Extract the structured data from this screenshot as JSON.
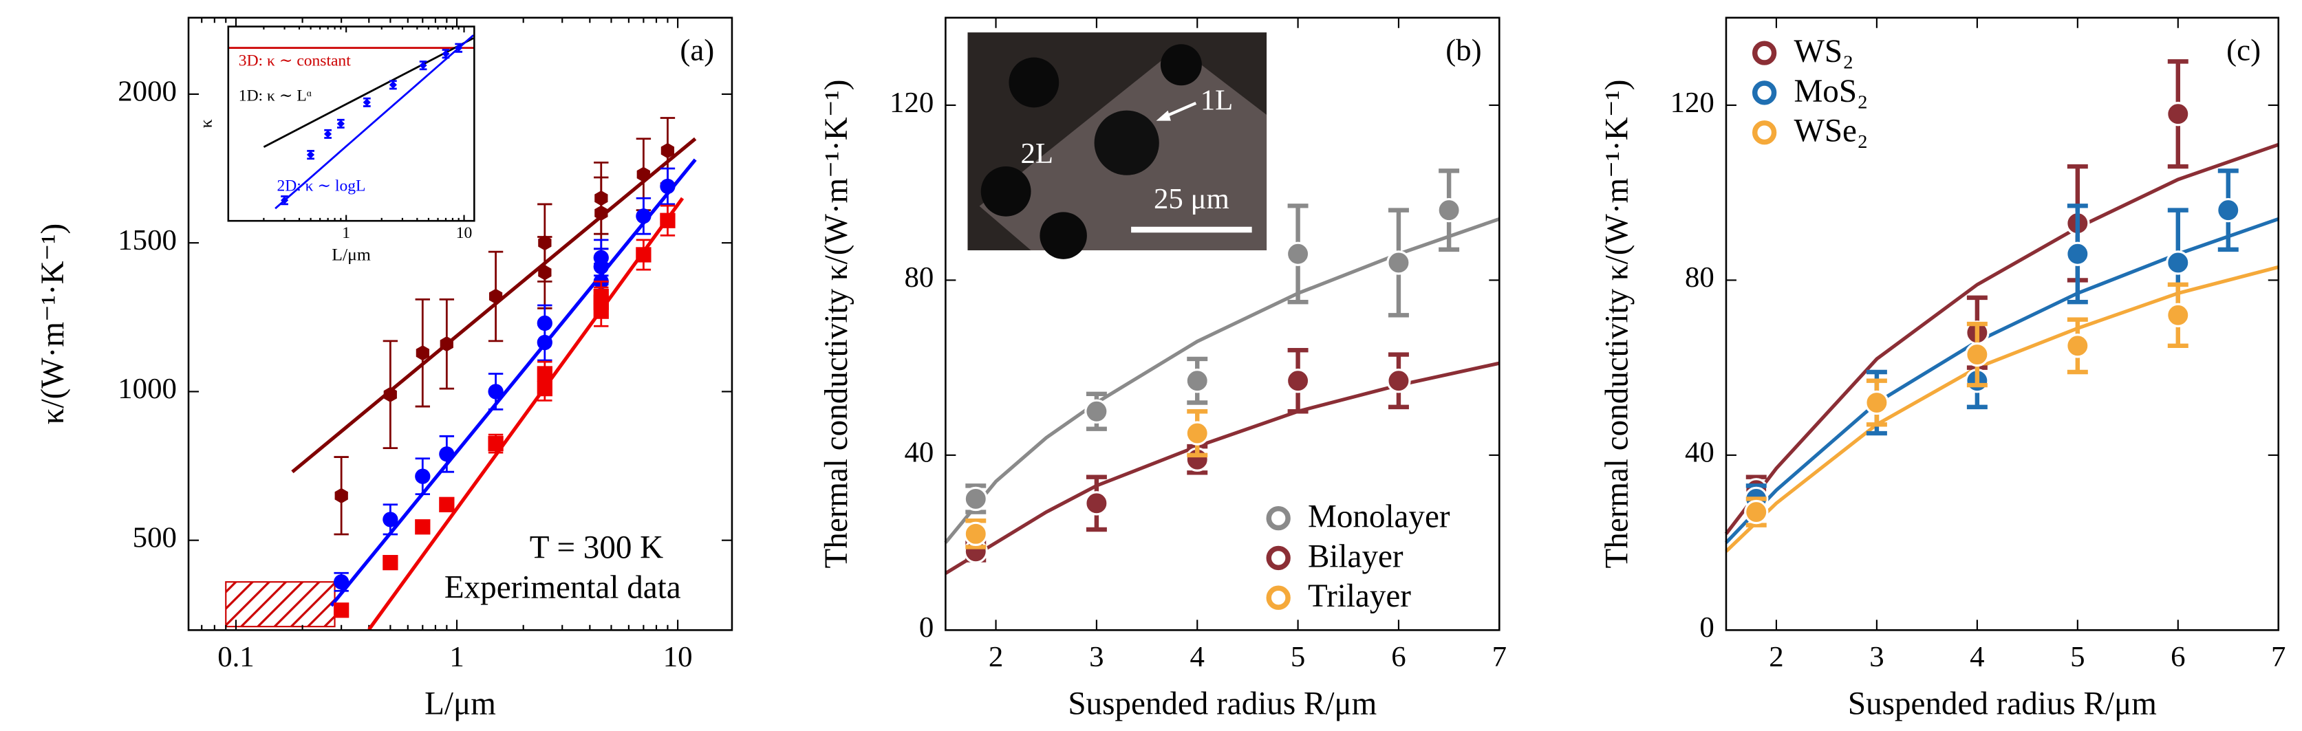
{
  "chart_data": [
    {
      "type": "scatter",
      "label": "(a)",
      "xlabel": "L/μm",
      "ylabel": "κ/(W·m⁻¹·K⁻¹)",
      "xscale": "log",
      "xlim": [
        0.061,
        17.6
      ],
      "ylim": [
        198,
        2257
      ],
      "xticks": [
        0.1,
        1,
        10
      ],
      "yticks": [
        500,
        1000,
        1500,
        2000
      ],
      "series": [
        {
          "color": "#800000",
          "marker": "hexagon",
          "x": [
            0.3,
            0.5,
            0.7,
            0.9,
            1.5,
            2.5,
            2.5,
            4.5,
            4.5,
            7,
            9
          ],
          "values": [
            650,
            990,
            1130,
            1160,
            1320,
            1400,
            1500,
            1600,
            1650,
            1730,
            1810
          ],
          "errors": [
            130,
            180,
            180,
            150,
            150,
            120,
            130,
            120,
            120,
            120,
            110
          ]
        },
        {
          "color": "#0000ff",
          "marker": "circle",
          "x": [
            0.3,
            0.5,
            0.7,
            0.9,
            1.5,
            2.5,
            2.5,
            4.5,
            4.5,
            4.5,
            7,
            9
          ],
          "values": [
            360,
            570,
            715,
            790,
            1000,
            1165,
            1230,
            1370,
            1420,
            1450,
            1590,
            1690
          ],
          "errors": [
            30,
            50,
            60,
            60,
            60,
            60,
            60,
            60,
            60,
            60,
            60,
            60
          ]
        },
        {
          "color": "#ee0000",
          "marker": "square",
          "x": [
            0.3,
            0.5,
            0.7,
            0.9,
            1.5,
            2.5,
            2.5,
            4.5,
            4.5,
            4.5,
            7,
            9
          ],
          "values": [
            265,
            425,
            545,
            620,
            825,
            1010,
            1060,
            1270,
            1300,
            1320,
            1460,
            1575
          ],
          "errors": [
            10,
            10,
            20,
            20,
            30,
            40,
            40,
            50,
            50,
            50,
            50,
            50
          ]
        }
      ],
      "fits": [
        {
          "color": "#800000",
          "x": [
            0.18,
            12
          ],
          "values": [
            730,
            1850
          ]
        },
        {
          "color": "#0000ff",
          "x": [
            0.27,
            12
          ],
          "values": [
            280,
            1780
          ]
        },
        {
          "color": "#ee0000",
          "x": [
            0.4,
            10.5
          ],
          "values": [
            200,
            1650
          ]
        }
      ],
      "hatch_region": {
        "color": "#cc0000",
        "x": [
          0.09,
          0.28
        ],
        "y": [
          210,
          360
        ]
      },
      "annotations": [
        {
          "text": "T = 300 K",
          "color": "#000000"
        },
        {
          "text": "Experimental data",
          "color": "#000000"
        }
      ]
    },
    {
      "type": "scatter",
      "xlabel": "L/μm",
      "ylabel": "κ",
      "xscale": "log",
      "xlim": [
        0.1,
        12.2
      ],
      "ylim": [
        0,
        100
      ],
      "xticks": [
        1,
        10
      ],
      "series": [
        {
          "color": "#0000ff",
          "marker": "diamond",
          "x": [
            0.3,
            0.5,
            0.7,
            0.9,
            1.5,
            2.5,
            4.5,
            7,
            9
          ],
          "values": [
            10.6,
            34,
            44.7,
            50,
            61,
            70,
            80,
            86,
            89
          ],
          "errors": [
            2,
            2,
            2,
            2,
            2,
            2,
            2,
            2,
            2
          ]
        }
      ],
      "fits": [
        {
          "color": "#cc0000",
          "x": [
            0.1,
            12.2
          ],
          "values": [
            89,
            89
          ]
        },
        {
          "color": "#000000",
          "x": [
            0.2,
            12
          ],
          "values": [
            38,
            94
          ]
        },
        {
          "color": "#0000ff",
          "x": [
            0.25,
            0.5,
            1,
            2,
            4,
            8,
            12
          ],
          "values": [
            6.4,
            22.3,
            38.3,
            54.3,
            70.2,
            86.2,
            95.5
          ]
        }
      ],
      "annotations": [
        {
          "text": "3D: κ ∼ constant",
          "color": "#cc0000"
        },
        {
          "text": "1D: κ ∼ Lᵅ",
          "color": "#000000"
        },
        {
          "text": "2D: κ ∼ logL",
          "color": "#0000ff"
        }
      ]
    },
    {
      "type": "scatter",
      "label": "(b)",
      "xlabel": "Suspended radius R/μm",
      "ylabel": "Thermal conductivity κ/(W·m⁻¹·K⁻¹)",
      "xlim": [
        1.5,
        7
      ],
      "ylim": [
        0,
        140
      ],
      "xticks": [
        2,
        3,
        4,
        5,
        6,
        7
      ],
      "yticks": [
        0,
        40,
        80,
        120
      ],
      "legend": "lower right",
      "series": [
        {
          "name": "Monolayer",
          "color": "#8a8a8a",
          "marker": "circle",
          "x": [
            1.8,
            3,
            4,
            5,
            6,
            6.5
          ],
          "values": [
            30,
            50,
            57,
            86,
            84,
            96
          ],
          "errors": [
            3,
            4,
            5,
            11,
            12,
            9
          ]
        },
        {
          "name": "Bilayer",
          "color": "#8b2e35",
          "marker": "circle",
          "x": [
            1.8,
            3,
            4,
            5,
            6
          ],
          "values": [
            18,
            29,
            39,
            57,
            57
          ],
          "errors": [
            2,
            6,
            3,
            7,
            6
          ]
        },
        {
          "name": "Trilayer",
          "color": "#f5a93a",
          "marker": "circle",
          "x": [
            1.8,
            4
          ],
          "values": [
            22,
            45
          ],
          "errors": [
            3,
            5
          ]
        }
      ],
      "fits": [
        {
          "color": "#8a8a8a",
          "x": [
            1.5,
            2,
            2.5,
            3,
            4,
            5,
            6,
            7
          ],
          "values": [
            20,
            34,
            44,
            52,
            66,
            77,
            86,
            94
          ]
        },
        {
          "color": "#8b2e35",
          "x": [
            1.5,
            2,
            2.5,
            3,
            4,
            5,
            6,
            7
          ],
          "values": [
            13,
            20,
            27,
            33,
            42,
            50,
            56,
            61
          ]
        }
      ],
      "inset_labels": [
        "1L",
        "2L",
        "25 μm"
      ]
    },
    {
      "type": "scatter",
      "label": "(c)",
      "xlabel": "Suspended radius R/μm",
      "ylabel": "Thermal conductivity κ/(W·m⁻¹·K⁻¹)",
      "xlim": [
        1.5,
        7
      ],
      "ylim": [
        0,
        140
      ],
      "xticks": [
        2,
        3,
        4,
        5,
        6,
        7
      ],
      "yticks": [
        0,
        40,
        80,
        120
      ],
      "legend": "upper left",
      "series": [
        {
          "name": "WS₂",
          "color": "#8b2e35",
          "marker": "circle",
          "x": [
            1.8,
            4,
            5,
            6
          ],
          "values": [
            32,
            68,
            93,
            118
          ],
          "errors": [
            3,
            8,
            13,
            12
          ]
        },
        {
          "name": "MoS₂",
          "color": "#1f6fb2",
          "marker": "circle",
          "x": [
            1.8,
            3,
            4,
            5,
            6,
            6.5
          ],
          "values": [
            30,
            52,
            57,
            86,
            84,
            96
          ],
          "errors": [
            3,
            7,
            6,
            11,
            12,
            9
          ]
        },
        {
          "name": "WSe₂",
          "color": "#f5a93a",
          "marker": "circle",
          "x": [
            1.8,
            3,
            4,
            5,
            6
          ],
          "values": [
            27,
            52,
            63,
            65,
            72
          ],
          "errors": [
            3,
            5,
            7,
            6,
            7
          ]
        }
      ],
      "fits": [
        {
          "color": "#8b2e35",
          "x": [
            1.5,
            2,
            3,
            4,
            5,
            6,
            7
          ],
          "values": [
            22,
            37,
            62,
            79,
            92,
            103,
            111
          ]
        },
        {
          "color": "#1f6fb2",
          "x": [
            1.5,
            2,
            3,
            4,
            5,
            6,
            7
          ],
          "values": [
            20,
            32,
            52,
            66,
            77,
            86,
            94
          ]
        },
        {
          "color": "#f5a93a",
          "x": [
            1.5,
            2,
            3,
            4,
            5,
            6,
            7
          ],
          "values": [
            18,
            29,
            47,
            60,
            69,
            77,
            83
          ]
        }
      ]
    }
  ]
}
